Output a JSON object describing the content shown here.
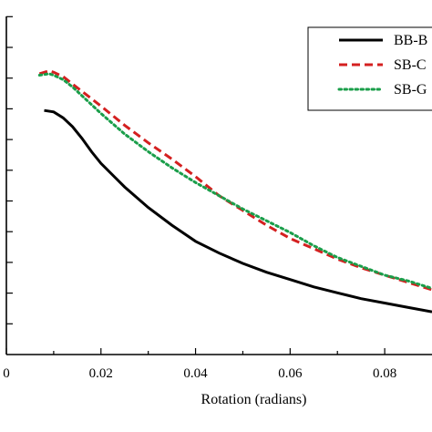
{
  "chart_data": {
    "type": "line",
    "xlabel": "Rotation (radians)",
    "ylabel": "",
    "xlim": [
      0,
      0.09
    ],
    "x_ticks": [
      "0",
      "0.02",
      "0.04",
      "0.06",
      "0.08"
    ],
    "x_tick_values": [
      0,
      0.02,
      0.04,
      0.06,
      0.08
    ],
    "ylim": [
      0,
      11.5
    ],
    "y_tick_count": 12,
    "grid": false,
    "legend_position": "top-right",
    "series": [
      {
        "name": "BB-B",
        "color": "#000000",
        "style": "solid",
        "x": [
          0.008,
          0.01,
          0.012,
          0.014,
          0.016,
          0.018,
          0.02,
          0.025,
          0.03,
          0.035,
          0.04,
          0.045,
          0.05,
          0.055,
          0.06,
          0.065,
          0.07,
          0.075,
          0.08,
          0.085,
          0.09
        ],
        "y": [
          8.3,
          8.25,
          8.05,
          7.75,
          7.35,
          6.9,
          6.5,
          5.7,
          5.0,
          4.4,
          3.85,
          3.45,
          3.1,
          2.8,
          2.55,
          2.3,
          2.1,
          1.9,
          1.75,
          1.6,
          1.45
        ]
      },
      {
        "name": "SB-C",
        "color": "#d42020",
        "style": "dashed",
        "x": [
          0.007,
          0.009,
          0.01,
          0.012,
          0.014,
          0.016,
          0.018,
          0.02,
          0.025,
          0.03,
          0.035,
          0.04,
          0.045,
          0.05,
          0.055,
          0.06,
          0.065,
          0.07,
          0.075,
          0.08,
          0.085,
          0.09
        ],
        "y": [
          9.55,
          9.65,
          9.6,
          9.45,
          9.2,
          8.95,
          8.7,
          8.45,
          7.8,
          7.2,
          6.65,
          6.05,
          5.4,
          4.9,
          4.4,
          3.95,
          3.6,
          3.25,
          2.95,
          2.7,
          2.45,
          2.2
        ]
      },
      {
        "name": "SB-G",
        "color": "#1a9e4a",
        "style": "dotted",
        "x": [
          0.007,
          0.009,
          0.01,
          0.012,
          0.014,
          0.016,
          0.018,
          0.02,
          0.025,
          0.03,
          0.035,
          0.04,
          0.045,
          0.05,
          0.055,
          0.06,
          0.065,
          0.07,
          0.075,
          0.08,
          0.085,
          0.09
        ],
        "y": [
          9.5,
          9.55,
          9.5,
          9.35,
          9.1,
          8.8,
          8.5,
          8.2,
          7.5,
          6.9,
          6.35,
          5.85,
          5.4,
          4.95,
          4.55,
          4.15,
          3.7,
          3.3,
          3.0,
          2.7,
          2.5,
          2.25
        ]
      }
    ]
  }
}
